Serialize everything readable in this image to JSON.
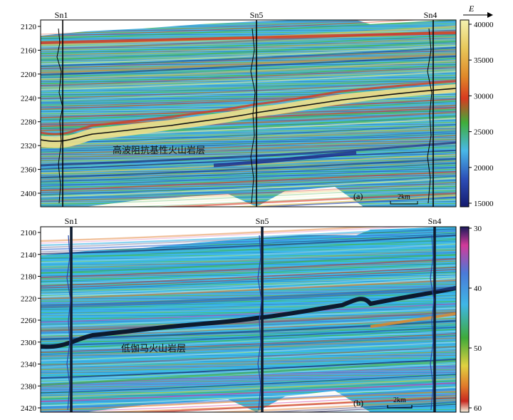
{
  "figure": {
    "direction_label": "E",
    "panels": [
      {
        "id": "a",
        "label": "(a)",
        "scale_bar": "2km",
        "annotation": "高波阻抗基性火山岩层",
        "wells": [
          "Sn1",
          "Sn5",
          "Sn4"
        ],
        "depth_ticks": [
          2120,
          2160,
          2200,
          2240,
          2280,
          2320,
          2360,
          2400
        ],
        "colorbar_ticks": [
          40000,
          35000,
          30000,
          25000,
          20000,
          15000
        ],
        "colormap": [
          "#f2f0a0",
          "#e8c850",
          "#e08a2a",
          "#d83a20",
          "#3fae3a",
          "#49b8e8",
          "#2d4fb8",
          "#141a6e"
        ]
      },
      {
        "id": "b",
        "label": "(b)",
        "scale_bar": "2km",
        "annotation": "低伽马火山岩层",
        "wells": [
          "Sn1",
          "Sn5",
          "Sn4"
        ],
        "depth_ticks": [
          2100,
          2140,
          2180,
          2220,
          2260,
          2300,
          2340,
          2380,
          2420
        ],
        "colorbar_ticks": [
          30,
          40,
          50,
          60
        ],
        "colormap": [
          "#1a1a5a",
          "#d23a9a",
          "#4a7ad8",
          "#3fb6e6",
          "#3faa3a",
          "#e0d040",
          "#e07a2a",
          "#c82a20",
          "#f4f4e0"
        ]
      }
    ]
  }
}
